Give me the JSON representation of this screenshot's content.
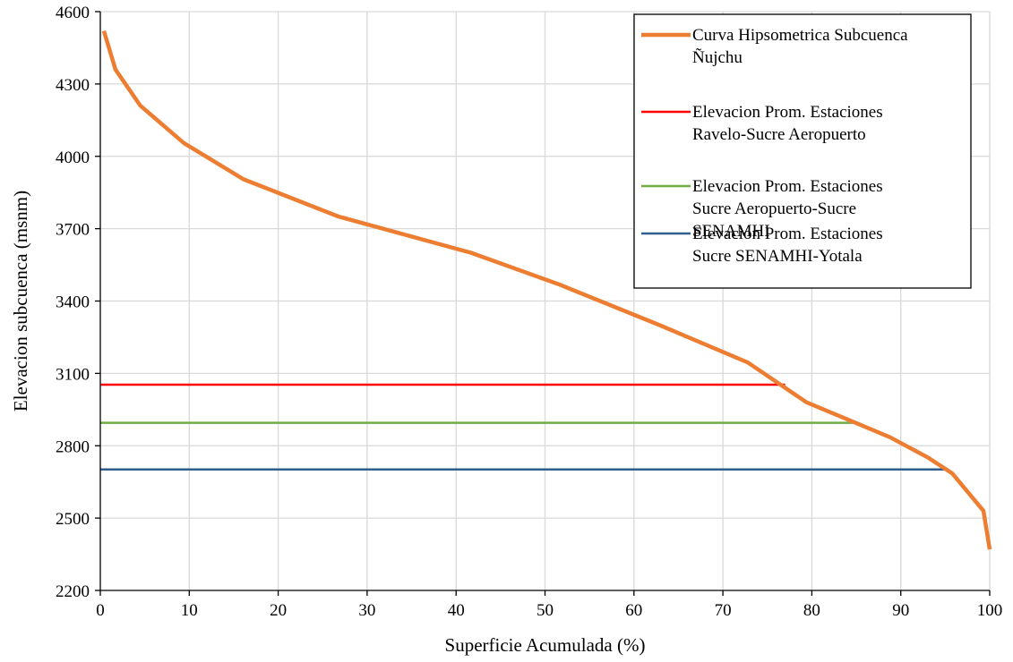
{
  "chart_data": {
    "type": "line",
    "title": "",
    "xlabel": "Superficie Acumulada (%)",
    "ylabel": "Elevacion subcuenca (msnm)",
    "xlim": [
      0,
      100
    ],
    "ylim": [
      2200,
      4600
    ],
    "xticks": [
      0,
      10,
      20,
      30,
      40,
      50,
      60,
      70,
      80,
      90,
      100
    ],
    "yticks": [
      2200,
      2500,
      2800,
      3100,
      3400,
      3700,
      4000,
      4300,
      4600
    ],
    "grid": true,
    "legend_position": "top-right",
    "series": [
      {
        "name_lines": [
          "Curva Hipsometrica Subcuenca",
          "Ñujchu"
        ],
        "color": "#ED7D31",
        "x": [
          0.4,
          1.7,
          4.5,
          9.4,
          16.1,
          26.8,
          41.7,
          51.5,
          62.9,
          72.8,
          79.4,
          84.9,
          88.8,
          93.1,
          95.8,
          99.3,
          100
        ],
        "y": [
          4520,
          4360,
          4210,
          4055,
          3905,
          3750,
          3600,
          3470,
          3300,
          3145,
          2980,
          2895,
          2835,
          2750,
          2685,
          2530,
          2370
        ]
      },
      {
        "name_lines": [
          "Elevacion Prom. Estaciones",
          "Ravelo-Sucre Aeropuerto"
        ],
        "color": "#FF0000",
        "x": [
          0,
          77
        ],
        "y": [
          3053,
          3053
        ]
      },
      {
        "name_lines": [
          "Elevacion Prom. Estaciones",
          "Sucre Aeropuerto-Sucre",
          "SENAMHI"
        ],
        "color": "#70AD47",
        "x": [
          0,
          85
        ],
        "y": [
          2895,
          2895
        ]
      },
      {
        "name_lines": [
          "Elevacion Prom. Estaciones",
          "Sucre SENAMHI-Yotala"
        ],
        "color": "#2E5E8E",
        "x": [
          0,
          95.2
        ],
        "y": [
          2702,
          2702
        ]
      }
    ]
  }
}
